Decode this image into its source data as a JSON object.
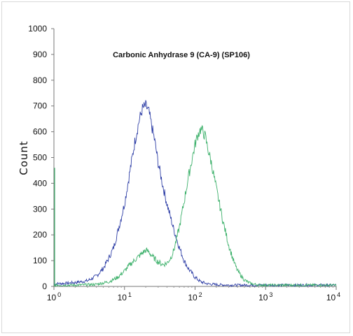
{
  "chart_data": {
    "type": "line",
    "title": "Carbonic Anhydrase 9 (CA-9)  (SP106)",
    "xlabel": "",
    "ylabel": "Count",
    "xscale": "log",
    "xlim": [
      1,
      10000
    ],
    "ylim": [
      0,
      1000
    ],
    "yticks": [
      "0",
      "100",
      "200",
      "300",
      "400",
      "500",
      "600",
      "700",
      "800",
      "900",
      "1000"
    ],
    "xticks": [
      {
        "base": "10",
        "exp": "0"
      },
      {
        "base": "10",
        "exp": "1"
      },
      {
        "base": "10",
        "exp": "2"
      },
      {
        "base": "10",
        "exp": "3"
      },
      {
        "base": "10",
        "exp": "4"
      }
    ],
    "grid": false,
    "legend": "none",
    "series": [
      {
        "color": "#2f3fa6",
        "x": [
          1,
          1.5,
          2,
          3,
          4,
          5,
          6,
          7,
          8,
          10,
          12,
          14,
          16,
          18,
          20,
          22,
          24,
          27,
          30,
          35,
          40,
          50,
          60,
          70,
          80,
          100,
          120,
          150,
          200,
          300,
          500,
          1000,
          10000
        ],
        "y": [
          10,
          12,
          15,
          22,
          40,
          70,
          110,
          150,
          210,
          320,
          450,
          560,
          640,
          690,
          700,
          680,
          630,
          560,
          480,
          390,
          320,
          220,
          150,
          100,
          70,
          35,
          18,
          10,
          7,
          5,
          5,
          5,
          5
        ]
      },
      {
        "color": "#3cb06a",
        "x": [
          1,
          2,
          4,
          6,
          8,
          10,
          12,
          15,
          18,
          20,
          22,
          25,
          30,
          35,
          40,
          45,
          50,
          60,
          70,
          80,
          90,
          100,
          110,
          120,
          130,
          140,
          150,
          170,
          200,
          250,
          300,
          350,
          400,
          500,
          600,
          700,
          800,
          1000,
          10000
        ],
        "y": [
          5,
          5,
          8,
          18,
          35,
          60,
          85,
          110,
          130,
          140,
          135,
          115,
          95,
          85,
          90,
          110,
          140,
          230,
          330,
          420,
          490,
          550,
          590,
          610,
          600,
          580,
          540,
          480,
          380,
          250,
          160,
          100,
          60,
          25,
          12,
          8,
          6,
          5,
          5
        ]
      }
    ],
    "baseline_spike": {
      "x": 1,
      "y": 460,
      "color": "#3cb06a"
    }
  }
}
